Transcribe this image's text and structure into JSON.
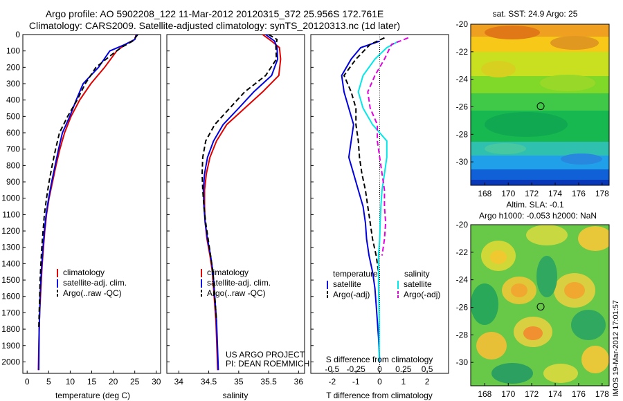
{
  "title": {
    "line1": "Argo profile: AO 5902208_122 11-Mar-2012 20120315_372 25.956S 172.761E",
    "line2": "Climatology: CARS2009. Satellite-adjusted climatology: synTS_20120313.nc (1d later)"
  },
  "credits": {
    "line1": "US ARGO PROJECT",
    "line2": "PI: DEAN ROEMMICH"
  },
  "stamp": "IMOS 19-Mar-2012 17:01:57",
  "colors": {
    "climatology": "#e00000",
    "satellite": "#0000e0",
    "argo": "#000000",
    "sal_satellite": "#00e8e8",
    "sal_argo": "#e000e0"
  },
  "chart_data": [
    {
      "type": "line",
      "name": "temperature-profile",
      "xlabel": "temperature (deg C)",
      "ylabel": "",
      "xlim": [
        -1,
        31
      ],
      "ylim": [
        2070,
        0
      ],
      "xticks": [
        0,
        5,
        10,
        15,
        20,
        25,
        30
      ],
      "yticks": [
        0,
        100,
        200,
        300,
        400,
        500,
        600,
        700,
        800,
        900,
        1000,
        1100,
        1200,
        1300,
        1400,
        1500,
        1600,
        1700,
        1800,
        1900,
        2000
      ],
      "legend": [
        "climatology",
        "satellite-adj. clim.",
        "Argo(..raw -QC)"
      ],
      "series": [
        {
          "name": "climatology",
          "color": "red",
          "dash": "",
          "x": [
            25.3,
            25.0,
            22.8,
            20.8,
            18.0,
            14.8,
            12.2,
            10.2,
            8.7,
            7.6,
            6.7,
            5.9,
            5.1,
            4.5,
            4.1,
            3.8,
            3.5,
            3.3,
            3.1,
            2.9,
            2.8,
            2.6
          ],
          "y": [
            0,
            30,
            60,
            100,
            200,
            300,
            400,
            500,
            600,
            700,
            800,
            900,
            1000,
            1100,
            1200,
            1300,
            1400,
            1500,
            1600,
            1700,
            1800,
            2050
          ]
        },
        {
          "name": "satellite-adj. clim.",
          "color": "blue",
          "dash": "",
          "x": [
            25.4,
            25.0,
            22.8,
            19.2,
            16.6,
            13.0,
            11.4,
            9.9,
            8.2,
            7.3,
            6.5,
            5.7,
            5.0,
            4.4,
            4.0,
            3.7,
            3.4,
            3.2,
            3.0,
            2.9,
            2.8,
            2.7
          ],
          "y": [
            0,
            30,
            60,
            100,
            200,
            300,
            400,
            500,
            600,
            700,
            800,
            900,
            1000,
            1100,
            1200,
            1300,
            1400,
            1500,
            1600,
            1700,
            1800,
            2050
          ]
        },
        {
          "name": "Argo(..raw -QC)",
          "color": "black",
          "dash": "7,4",
          "x": [
            25.7,
            24.5,
            21.8,
            19.8,
            16.0,
            13.5,
            11.6,
            9.4,
            7.5,
            6.6,
            5.8,
            5.1,
            4.5,
            4.0,
            3.7,
            3.4,
            3.2,
            3.0,
            2.9,
            2.8,
            2.7
          ],
          "y": [
            0,
            40,
            80,
            120,
            200,
            300,
            400,
            500,
            600,
            700,
            800,
            900,
            1000,
            1100,
            1200,
            1300,
            1400,
            1500,
            1600,
            1700,
            1800
          ]
        }
      ]
    },
    {
      "type": "line",
      "name": "salinity-profile",
      "xlabel": "salinity",
      "ylabel": "",
      "xlim": [
        33.8,
        36.1
      ],
      "ylim": [
        2070,
        0
      ],
      "xticks": [
        34,
        34.5,
        35,
        35.5,
        36
      ],
      "legend": [
        "climatology",
        "satellite-adj. clim.",
        "Argo(..raw -QC)"
      ],
      "series": [
        {
          "name": "climatology",
          "color": "red",
          "dash": "",
          "x": [
            35.4,
            35.55,
            35.68,
            35.7,
            35.67,
            35.4,
            35.1,
            34.8,
            34.63,
            34.52,
            34.46,
            34.43,
            34.43,
            34.44,
            34.47,
            34.52,
            34.56,
            34.58,
            34.6,
            34.62,
            34.63,
            34.65
          ],
          "y": [
            0,
            40,
            80,
            150,
            250,
            350,
            450,
            550,
            650,
            750,
            850,
            950,
            1050,
            1150,
            1250,
            1350,
            1450,
            1550,
            1650,
            1750,
            1850,
            2050
          ]
        },
        {
          "name": "satellite-adj. clim.",
          "color": "blue",
          "dash": "",
          "x": [
            35.45,
            35.6,
            35.64,
            35.65,
            35.55,
            35.25,
            35.0,
            34.74,
            34.58,
            34.48,
            34.43,
            34.41,
            34.42,
            34.44,
            34.48,
            34.53,
            34.57,
            34.59,
            34.61,
            34.63,
            34.64,
            34.66
          ],
          "y": [
            0,
            40,
            80,
            150,
            250,
            350,
            450,
            550,
            650,
            750,
            850,
            950,
            1050,
            1150,
            1250,
            1350,
            1450,
            1550,
            1650,
            1750,
            1850,
            2050
          ]
        },
        {
          "name": "Argo(..raw -QC)",
          "color": "black",
          "dash": "7,4",
          "x": [
            35.5,
            35.64,
            35.62,
            35.63,
            35.45,
            35.1,
            34.85,
            34.6,
            34.45,
            34.4,
            34.39,
            34.4,
            34.42,
            34.45,
            34.49,
            34.53,
            34.57,
            34.59,
            34.61,
            34.63
          ],
          "y": [
            0,
            30,
            70,
            150,
            250,
            350,
            450,
            550,
            650,
            750,
            850,
            950,
            1050,
            1150,
            1250,
            1350,
            1450,
            1550,
            1650,
            1750
          ]
        }
      ]
    },
    {
      "type": "line",
      "name": "difference-profile",
      "xlabel": "T difference from climatology",
      "top_label": "S difference from climatology",
      "xlim": [
        -2.9,
        2.9
      ],
      "ylim": [
        2070,
        0
      ],
      "xticks": [
        -2,
        -1,
        0,
        1,
        2
      ],
      "top_ticks": [
        -0.5,
        -0.25,
        0,
        0.25,
        0.5
      ],
      "legend_titles": [
        "temperature",
        "salinity"
      ],
      "legend": [
        "satellite",
        "Argo(-adj)",
        "satellite",
        "Argo(-adj)"
      ],
      "series": [
        {
          "name": "satellite",
          "group": "temperature",
          "color": "blue",
          "dash": "",
          "x": [
            0,
            -0.8,
            -1.2,
            -1.6,
            -1.5,
            -1.3,
            -1.1,
            -1.2,
            -1.3,
            -1.1,
            -0.9,
            -0.7,
            -0.6,
            -0.55,
            -0.45,
            -0.3,
            -0.2,
            -0.15,
            -0.1,
            -0.05,
            0
          ],
          "y": [
            40,
            80,
            150,
            250,
            350,
            450,
            550,
            650,
            750,
            850,
            950,
            1050,
            1150,
            1250,
            1350,
            1450,
            1550,
            1650,
            1750,
            1850,
            2000
          ]
        },
        {
          "name": "Argo(-adj)",
          "group": "temperature",
          "color": "black",
          "dash": "7,4",
          "x": [
            0.2,
            -0.4,
            -1.0,
            -1.5,
            -1.2,
            -1.0,
            -1.0,
            -0.9,
            -0.85,
            -0.75,
            -0.6,
            -0.5,
            -0.4,
            -0.3,
            -0.15,
            -0.05
          ],
          "y": [
            20,
            60,
            150,
            250,
            350,
            450,
            550,
            650,
            750,
            850,
            950,
            1050,
            1150,
            1250,
            1350,
            1450
          ]
        },
        {
          "name": "satellite",
          "group": "salinity",
          "color": "cyan",
          "dash": "",
          "x": [
            0.8,
            0.3,
            -0.2,
            -0.7,
            -0.9,
            -0.7,
            -0.3,
            0.3,
            0.3,
            0.2,
            0.1,
            0.05,
            0.02,
            0,
            -0.05,
            -0.05,
            -0.05,
            -0.03,
            -0.02,
            -0.02
          ],
          "y": [
            40,
            80,
            150,
            250,
            350,
            450,
            550,
            650,
            750,
            850,
            950,
            1050,
            1150,
            1250,
            1350,
            1450,
            1550,
            1650,
            1750,
            2000
          ]
        },
        {
          "name": "Argo(-adj)",
          "group": "salinity",
          "color": "magenta",
          "dash": "7,4",
          "x": [
            1.2,
            0.5,
            0.2,
            -0.2,
            -0.5,
            -0.4,
            -0.1,
            -0.1,
            0,
            0.1,
            0.2,
            0.2,
            0.25,
            0.2,
            0.1
          ],
          "y": [
            20,
            60,
            150,
            250,
            350,
            450,
            550,
            650,
            750,
            850,
            950,
            1050,
            1150,
            1250,
            1350
          ]
        }
      ]
    },
    {
      "type": "heatmap",
      "name": "sst-map",
      "title": "sat. SST: 24.9 Argo: 25",
      "xlim": [
        166.8,
        178.6
      ],
      "ylim": [
        -31.7,
        -20
      ],
      "xticks": [
        168,
        170,
        172,
        174,
        176,
        178
      ],
      "yticks": [
        -20,
        -22,
        -24,
        -26,
        -28,
        -30
      ],
      "marker": {
        "lon": 172.761,
        "lat": -25.956
      }
    },
    {
      "type": "heatmap",
      "name": "sla-map",
      "title": "Altim. SLA: -0.1",
      "subtitle": "Argo h1000: -0.053 h2000: NaN",
      "xlim": [
        166.8,
        178.6
      ],
      "ylim": [
        -31.7,
        -20
      ],
      "xticks": [
        168,
        170,
        172,
        174,
        176,
        178
      ],
      "yticks": [
        -20,
        -22,
        -24,
        -26,
        -28,
        -30
      ],
      "marker": {
        "lon": 172.761,
        "lat": -25.956
      }
    }
  ]
}
